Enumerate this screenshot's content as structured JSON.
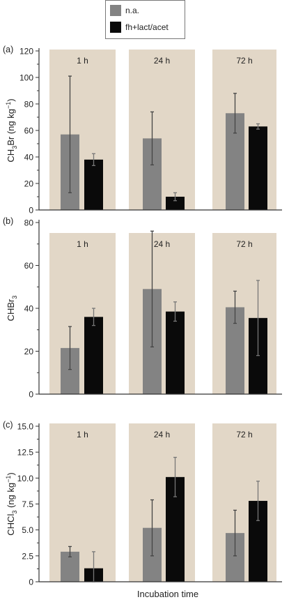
{
  "legend": {
    "items": [
      {
        "label": "n.a.",
        "color": "#838383"
      },
      {
        "label": "fh+lact/acet",
        "color": "#0a0a0a"
      }
    ]
  },
  "xlabel": "Incubation time",
  "panel_bg": "#e2d7c7",
  "chart_data": [
    {
      "type": "bar",
      "panel_label": "(a)",
      "categories": [
        "1 h",
        "24 h",
        "72 h"
      ],
      "ylabel_parts": [
        "CH",
        "3",
        "Br (ng kg",
        "−1",
        ")"
      ],
      "ylim": [
        0,
        120
      ],
      "yticks": [
        0,
        20,
        40,
        60,
        80,
        100,
        120
      ],
      "ytick_labels": [
        "0",
        "20",
        "40",
        "60",
        "80",
        "100",
        "120"
      ],
      "series": [
        {
          "name": "n.a.",
          "values": [
            57,
            54,
            73
          ],
          "errors": [
            44,
            20,
            15
          ]
        },
        {
          "name": "fh+lact/acet",
          "values": [
            38,
            10,
            63
          ],
          "errors": [
            4.5,
            3,
            2
          ]
        }
      ]
    },
    {
      "type": "bar",
      "panel_label": "(b)",
      "categories": [
        "1 h",
        "24 h",
        "72 h"
      ],
      "ylabel_parts": [
        "CHBr",
        "3",
        "",
        "",
        ""
      ],
      "ylim": [
        0,
        80
      ],
      "yticks": [
        0,
        20,
        40,
        60,
        80
      ],
      "ytick_labels": [
        "0",
        "20",
        "40",
        "60",
        "80"
      ],
      "series": [
        {
          "name": "n.a.",
          "values": [
            21.5,
            49,
            40.5
          ],
          "errors": [
            10,
            27,
            7.5
          ]
        },
        {
          "name": "fh+lact/acet",
          "values": [
            36,
            38.5,
            35.5
          ],
          "errors": [
            4,
            4.5,
            17.5
          ]
        }
      ]
    },
    {
      "type": "bar",
      "panel_label": "(c)",
      "categories": [
        "1 h",
        "24 h",
        "72 h"
      ],
      "ylabel_parts": [
        "CHCl",
        "3",
        " (ng kg",
        "−1",
        ")"
      ],
      "ylim": [
        0,
        15
      ],
      "yticks": [
        0,
        2.5,
        5,
        7.5,
        10,
        12.5,
        15
      ],
      "ytick_labels": [
        "0",
        "2.5",
        "5.0",
        "7.5",
        "10.0",
        "12.5",
        "15.0"
      ],
      "series": [
        {
          "name": "n.a.",
          "values": [
            2.9,
            5.2,
            4.7
          ],
          "errors": [
            0.5,
            2.7,
            2.2
          ]
        },
        {
          "name": "fh+lact/acet",
          "values": [
            1.3,
            10.1,
            7.8
          ],
          "errors": [
            1.6,
            1.9,
            1.9
          ]
        }
      ]
    }
  ]
}
